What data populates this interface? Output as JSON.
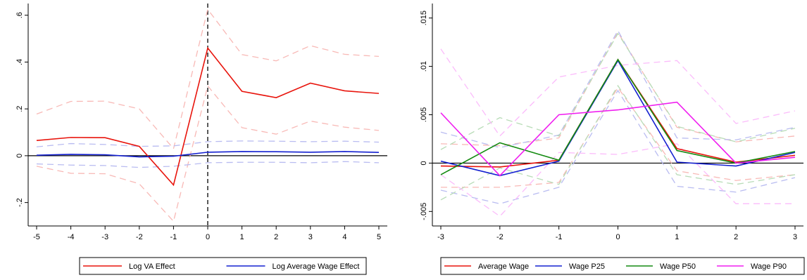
{
  "chart_data": [
    {
      "type": "line",
      "x": [
        -5,
        -4,
        -3,
        -2,
        -1,
        0,
        1,
        2,
        3,
        4,
        5
      ],
      "xlim": [
        -5,
        5
      ],
      "ylim": [
        -0.3,
        0.65
      ],
      "yticks": [
        -0.2,
        0,
        0.2,
        0.4,
        0.6
      ],
      "ytick_labels": [
        "-.2",
        "0",
        ".2",
        ".4",
        ".6"
      ],
      "xticks": [
        -5,
        -4,
        -3,
        -2,
        -1,
        0,
        1,
        2,
        3,
        4,
        5
      ],
      "xtick_labels": [
        "-5",
        "-4",
        "-3",
        "-2",
        "-1",
        "0",
        "1",
        "2",
        "3",
        "4",
        "5"
      ],
      "vline_x": 0,
      "hline_y": 0,
      "grid": false,
      "legend_position": "bottom",
      "series": [
        {
          "name": "Log VA Effect",
          "color": "#e8140c",
          "values": [
            0.065,
            0.078,
            0.077,
            0.04,
            -0.125,
            0.46,
            0.275,
            0.248,
            0.31,
            0.277,
            0.266
          ],
          "ci_low": [
            -0.045,
            -0.075,
            -0.077,
            -0.12,
            -0.28,
            0.298,
            0.12,
            0.092,
            0.148,
            0.122,
            0.108
          ],
          "ci_high": [
            0.178,
            0.232,
            0.233,
            0.2,
            0.03,
            0.625,
            0.432,
            0.405,
            0.47,
            0.433,
            0.424
          ]
        },
        {
          "name": "Log Average Wage Effect",
          "color": "#1420d0",
          "values": [
            0.002,
            0.006,
            0.004,
            -0.005,
            -0.002,
            0.015,
            0.018,
            0.017,
            0.015,
            0.018,
            0.014
          ],
          "ci_low": [
            -0.035,
            -0.04,
            -0.042,
            -0.05,
            -0.045,
            -0.03,
            -0.028,
            -0.028,
            -0.03,
            -0.025,
            -0.03
          ],
          "ci_high": [
            0.038,
            0.052,
            0.048,
            0.04,
            0.042,
            0.06,
            0.063,
            0.062,
            0.06,
            0.062,
            0.058
          ]
        }
      ]
    },
    {
      "type": "line",
      "x": [
        -3,
        -2,
        -1,
        0,
        1,
        2,
        3
      ],
      "xlim": [
        -3,
        3
      ],
      "ylim": [
        -0.0065,
        0.0165
      ],
      "yticks": [
        -0.005,
        0,
        0.005,
        0.01,
        0.015
      ],
      "ytick_labels": [
        "-.005",
        "0",
        ".005",
        ".01",
        ".015"
      ],
      "xticks": [
        -3,
        -2,
        -1,
        0,
        1,
        2,
        3
      ],
      "xtick_labels": [
        "-3",
        "-2",
        "-1",
        "0",
        "1",
        "2",
        "3"
      ],
      "hline_y": 0,
      "grid": false,
      "legend_position": "bottom",
      "series": [
        {
          "name": "Average Wage",
          "color": "#e8140c",
          "values": [
            -0.0003,
            -0.0004,
            0.0003,
            0.0107,
            0.0015,
            0.0001,
            0.0008
          ],
          "ci_low": [
            -0.0025,
            -0.0025,
            -0.002,
            0.0078,
            -0.0008,
            -0.0018,
            -0.0012
          ],
          "ci_high": [
            0.002,
            0.0018,
            0.0026,
            0.0135,
            0.0037,
            0.0022,
            0.0028
          ]
        },
        {
          "name": "Wage P25",
          "color": "#1420d0",
          "values": [
            0.0002,
            -0.0013,
            0.0002,
            0.0106,
            0.0001,
            -0.0003,
            0.0011
          ],
          "ci_low": [
            -0.0028,
            -0.0042,
            -0.0025,
            0.0075,
            -0.0024,
            -0.003,
            -0.0015
          ],
          "ci_high": [
            0.0032,
            0.0016,
            0.0029,
            0.0137,
            0.0026,
            0.0024,
            0.0037
          ]
        },
        {
          "name": "Wage P50",
          "color": "#138a10",
          "values": [
            -0.0012,
            0.0021,
            0.0003,
            0.0107,
            0.0013,
            0.0,
            0.0012
          ],
          "ci_low": [
            -0.0038,
            -0.0005,
            -0.0022,
            0.008,
            -0.0012,
            -0.0022,
            -0.0012
          ],
          "ci_high": [
            0.0014,
            0.0047,
            0.0028,
            0.0134,
            0.0038,
            0.0022,
            0.0036
          ]
        },
        {
          "name": "Wage P90",
          "color": "#f01ef0",
          "values": [
            0.0052,
            -0.0013,
            0.005,
            0.0055,
            0.0063,
            0.0,
            0.0006
          ],
          "ci_low": [
            -0.0012,
            -0.0055,
            0.0011,
            0.0009,
            0.002,
            -0.0042,
            -0.0042
          ],
          "ci_high": [
            0.0118,
            0.0028,
            0.0089,
            0.0101,
            0.0106,
            0.0041,
            0.0054
          ]
        }
      ]
    }
  ]
}
